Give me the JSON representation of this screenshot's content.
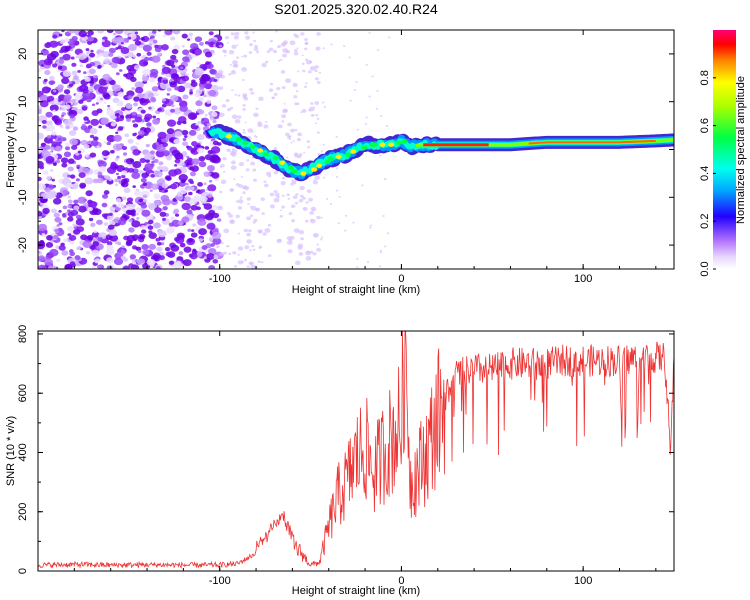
{
  "chart_data": [
    {
      "type": "heatmap",
      "title": "S201.2025.320.02.40.R24",
      "xlabel": "Height of straight line (km)",
      "ylabel": "Frequency (Hz)",
      "xlim": [
        -200,
        150
      ],
      "ylim": [
        -25,
        25
      ],
      "xticks": [
        -100,
        0,
        100
      ],
      "yticks": [
        -20,
        -10,
        0,
        10,
        20
      ],
      "colorbar": {
        "label": "Normalized spectral amplitude",
        "range": [
          0,
          1
        ],
        "ticks": [
          0.0,
          0.2,
          0.4,
          0.6,
          0.8
        ]
      },
      "ridge": {
        "x": [
          -105,
          -100,
          -90,
          -80,
          -70,
          -60,
          -55,
          -50,
          -40,
          -30,
          -20,
          -10,
          -5,
          0,
          5,
          10,
          20,
          40,
          60,
          80,
          100,
          120,
          140,
          150
        ],
        "y": [
          4,
          3.5,
          2,
          0,
          -2,
          -4.5,
          -5,
          -4,
          -2,
          -1,
          1,
          1,
          1,
          2,
          0.5,
          1,
          1,
          1,
          1,
          1.5,
          1.5,
          1.5,
          1.8,
          2
        ]
      }
    },
    {
      "type": "line",
      "xlabel": "Height of straight line (km)",
      "ylabel": "SNR (10 * v/v)",
      "xlim": [
        -200,
        150
      ],
      "ylim": [
        0,
        810
      ],
      "xticks": [
        -100,
        0,
        100
      ],
      "yticks": [
        0,
        200,
        400,
        600,
        800
      ],
      "color": "#ee3333",
      "series": [
        {
          "name": "SNR",
          "x": [
            -200,
            -180,
            -160,
            -140,
            -120,
            -100,
            -90,
            -80,
            -75,
            -70,
            -65,
            -60,
            -55,
            -50,
            -45,
            -40,
            -35,
            -30,
            -25,
            -20,
            -15,
            -10,
            -5,
            0,
            2,
            5,
            10,
            15,
            20,
            25,
            30,
            40,
            50,
            60,
            70,
            80,
            90,
            100,
            110,
            120,
            130,
            140,
            145,
            148,
            150
          ],
          "y": [
            20,
            22,
            20,
            21,
            20,
            20,
            25,
            60,
            90,
            130,
            170,
            90,
            60,
            20,
            30,
            150,
            250,
            300,
            380,
            420,
            330,
            400,
            450,
            500,
            800,
            300,
            350,
            420,
            520,
            600,
            660,
            680,
            680,
            700,
            700,
            700,
            710,
            710,
            710,
            710,
            720,
            720,
            720,
            400,
            700
          ]
        }
      ]
    }
  ]
}
